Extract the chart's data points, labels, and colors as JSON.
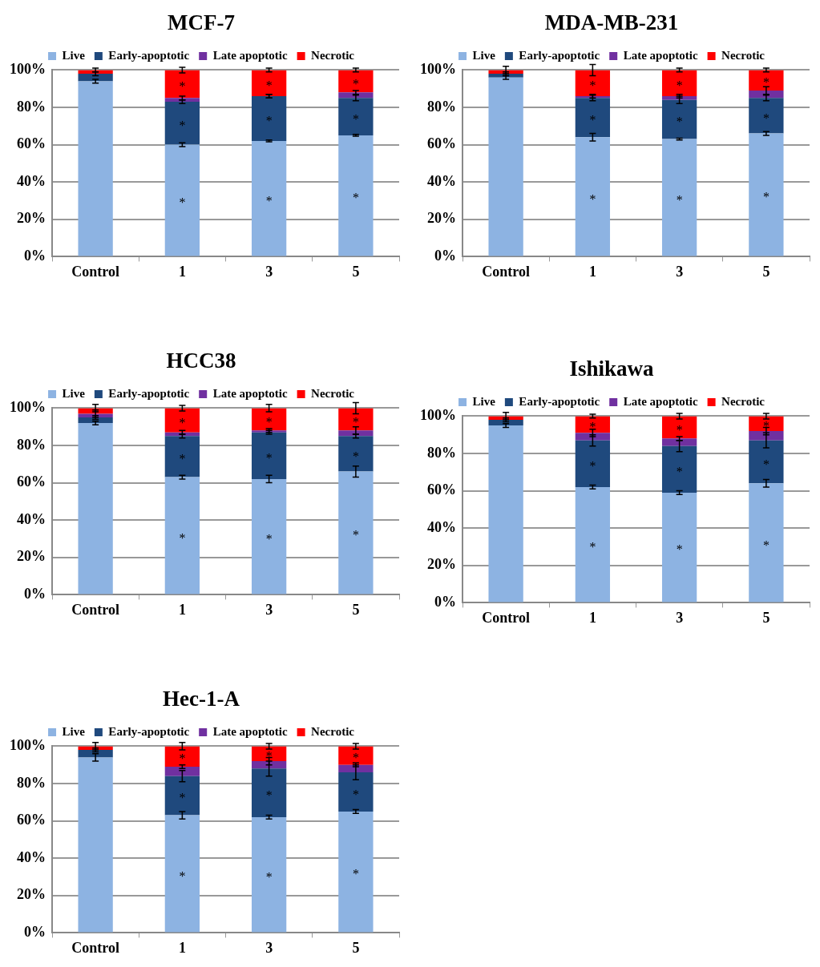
{
  "chart_data": [
    {
      "type": "bar",
      "title": "MCF-7",
      "categories": [
        "Control",
        "1",
        "3",
        "5"
      ],
      "stacked": true,
      "grid": "y",
      "legend": "top",
      "ylim": [
        0,
        100
      ],
      "yticks": [
        {
          "value": 0,
          "label": "0%"
        },
        {
          "value": 20,
          "label": "20%"
        },
        {
          "value": 40,
          "label": "40%"
        },
        {
          "value": 60,
          "label": "60%"
        },
        {
          "value": 80,
          "label": "80%"
        },
        {
          "value": 100,
          "label": "100%"
        }
      ],
      "series": [
        {
          "name": "Live",
          "color": "#8db3e2",
          "values": [
            94,
            60,
            62,
            65
          ],
          "errors": [
            1,
            1,
            0.5,
            0.5
          ],
          "value_labels": [
            null,
            "*",
            "*",
            "*"
          ]
        },
        {
          "name": "Early-apoptotic",
          "color": "#1f497d",
          "values": [
            4,
            23,
            24,
            20
          ],
          "errors": [
            1,
            1,
            1,
            1.5
          ],
          "value_labels": [
            null,
            "*",
            "*",
            "*"
          ]
        },
        {
          "name": "Late apoptotic",
          "color": "#7030a0",
          "values": [
            0,
            2,
            0,
            3
          ],
          "errors": [
            null,
            1,
            1,
            1
          ]
        },
        {
          "name": "Necrotic",
          "color": "#ff0000",
          "values": [
            2,
            15,
            14,
            12
          ],
          "errors": [
            1,
            1.5,
            1,
            1
          ],
          "value_labels": [
            null,
            "*",
            "*",
            "*"
          ]
        }
      ]
    },
    {
      "type": "bar",
      "title": "MDA-MB-231",
      "categories": [
        "Control",
        "1",
        "3",
        "5"
      ],
      "stacked": true,
      "grid": "y",
      "legend": "top",
      "ylim": [
        0,
        100
      ],
      "yticks": [
        {
          "value": 0,
          "label": "0%"
        },
        {
          "value": 20,
          "label": "20%"
        },
        {
          "value": 40,
          "label": "40%"
        },
        {
          "value": 60,
          "label": "60%"
        },
        {
          "value": 80,
          "label": "80%"
        },
        {
          "value": 100,
          "label": "100%"
        }
      ],
      "series": [
        {
          "name": "Live",
          "color": "#8db3e2",
          "values": [
            96,
            64,
            63,
            66
          ],
          "errors": [
            1,
            2,
            0.5,
            1
          ],
          "value_labels": [
            null,
            "*",
            "*",
            "*"
          ]
        },
        {
          "name": "Early-apoptotic",
          "color": "#1f497d",
          "values": [
            2,
            21,
            21,
            19
          ],
          "errors": [
            1,
            1.5,
            2,
            1.5
          ],
          "value_labels": [
            null,
            "*",
            "*",
            "*"
          ]
        },
        {
          "name": "Late apoptotic",
          "color": "#7030a0",
          "values": [
            0,
            1,
            2,
            4
          ],
          "errors": [
            null,
            1,
            1,
            2
          ]
        },
        {
          "name": "Necrotic",
          "color": "#ff0000",
          "values": [
            2,
            14,
            14,
            11
          ],
          "errors": [
            2,
            3,
            1,
            1
          ],
          "value_labels": [
            null,
            "*",
            "*",
            "*"
          ]
        }
      ]
    },
    {
      "type": "bar",
      "title": "HCC38",
      "categories": [
        "Control",
        "1",
        "3",
        "5"
      ],
      "stacked": true,
      "grid": "y",
      "legend": "top",
      "ylim": [
        0,
        100
      ],
      "yticks": [
        {
          "value": 0,
          "label": "0%"
        },
        {
          "value": 20,
          "label": "20%"
        },
        {
          "value": 40,
          "label": "40%"
        },
        {
          "value": 60,
          "label": "60%"
        },
        {
          "value": 80,
          "label": "80%"
        },
        {
          "value": 100,
          "label": "100%"
        }
      ],
      "series": [
        {
          "name": "Live",
          "color": "#8db3e2",
          "values": [
            92,
            63,
            62,
            66
          ],
          "errors": [
            1,
            1,
            2,
            3
          ],
          "value_labels": [
            null,
            "*",
            "*",
            "*"
          ]
        },
        {
          "name": "Early-apoptotic",
          "color": "#1f497d",
          "values": [
            3,
            22,
            25,
            19
          ],
          "errors": [
            1,
            1,
            1,
            1
          ],
          "value_labels": [
            null,
            "*",
            "*",
            "*"
          ]
        },
        {
          "name": "Late apoptotic",
          "color": "#7030a0",
          "values": [
            2,
            2,
            1,
            3
          ],
          "errors": [
            2,
            1,
            1,
            2
          ]
        },
        {
          "name": "Necrotic",
          "color": "#ff0000",
          "values": [
            3,
            13,
            12,
            12
          ],
          "errors": [
            2,
            1.5,
            2,
            3
          ],
          "value_labels": [
            null,
            "*",
            "*",
            "*"
          ]
        }
      ]
    },
    {
      "type": "bar",
      "title": "Ishikawa",
      "categories": [
        "Control",
        "1",
        "3",
        "5"
      ],
      "stacked": true,
      "grid": "y",
      "legend": "top",
      "ylim": [
        0,
        100
      ],
      "yticks": [
        {
          "value": 0,
          "label": "0%"
        },
        {
          "value": 20,
          "label": "20%"
        },
        {
          "value": 40,
          "label": "40%"
        },
        {
          "value": 60,
          "label": "60%"
        },
        {
          "value": 80,
          "label": "80%"
        },
        {
          "value": 100,
          "label": "100%"
        }
      ],
      "series": [
        {
          "name": "Live",
          "color": "#8db3e2",
          "values": [
            95,
            62,
            59,
            64
          ],
          "errors": [
            1,
            1,
            1,
            2
          ],
          "value_labels": [
            null,
            "*",
            "*",
            "*"
          ]
        },
        {
          "name": "Early-apoptotic",
          "color": "#1f497d",
          "values": [
            3,
            25,
            25,
            23
          ],
          "errors": [
            1,
            3,
            3,
            4
          ],
          "value_labels": [
            null,
            "*",
            "*",
            "*"
          ]
        },
        {
          "name": "Late apoptotic",
          "color": "#7030a0",
          "values": [
            0,
            4,
            4,
            5
          ],
          "errors": [
            null,
            2,
            1,
            2
          ]
        },
        {
          "name": "Necrotic",
          "color": "#ff0000",
          "values": [
            2,
            9,
            12,
            8
          ],
          "errors": [
            2,
            1,
            1.5,
            1.5
          ],
          "value_labels": [
            null,
            "*",
            "*",
            "*"
          ]
        }
      ]
    },
    {
      "type": "bar",
      "title": "Hec-1-A",
      "categories": [
        "Control",
        "1",
        "3",
        "5"
      ],
      "stacked": true,
      "grid": "y",
      "legend": "top",
      "ylim": [
        0,
        100
      ],
      "yticks": [
        {
          "value": 0,
          "label": "0%"
        },
        {
          "value": 20,
          "label": "20%"
        },
        {
          "value": 40,
          "label": "40%"
        },
        {
          "value": 60,
          "label": "60%"
        },
        {
          "value": 80,
          "label": "80%"
        },
        {
          "value": 100,
          "label": "100%"
        }
      ],
      "series": [
        {
          "name": "Live",
          "color": "#8db3e2",
          "values": [
            94,
            63,
            62,
            65
          ],
          "errors": [
            2,
            2,
            1,
            1
          ],
          "value_labels": [
            null,
            "*",
            "*",
            "*"
          ]
        },
        {
          "name": "Early-apoptotic",
          "color": "#1f497d",
          "values": [
            4,
            21,
            26,
            21
          ],
          "errors": [
            1,
            3,
            4,
            4
          ],
          "value_labels": [
            null,
            "*",
            "*",
            "*"
          ]
        },
        {
          "name": "Late apoptotic",
          "color": "#7030a0",
          "values": [
            0,
            5,
            4,
            4
          ],
          "errors": [
            null,
            1,
            2,
            1
          ]
        },
        {
          "name": "Necrotic",
          "color": "#ff0000",
          "values": [
            2,
            11,
            8,
            10
          ],
          "errors": [
            2,
            2,
            1.5,
            1.5
          ],
          "value_labels": [
            null,
            "*",
            "*",
            "*"
          ]
        }
      ]
    }
  ]
}
